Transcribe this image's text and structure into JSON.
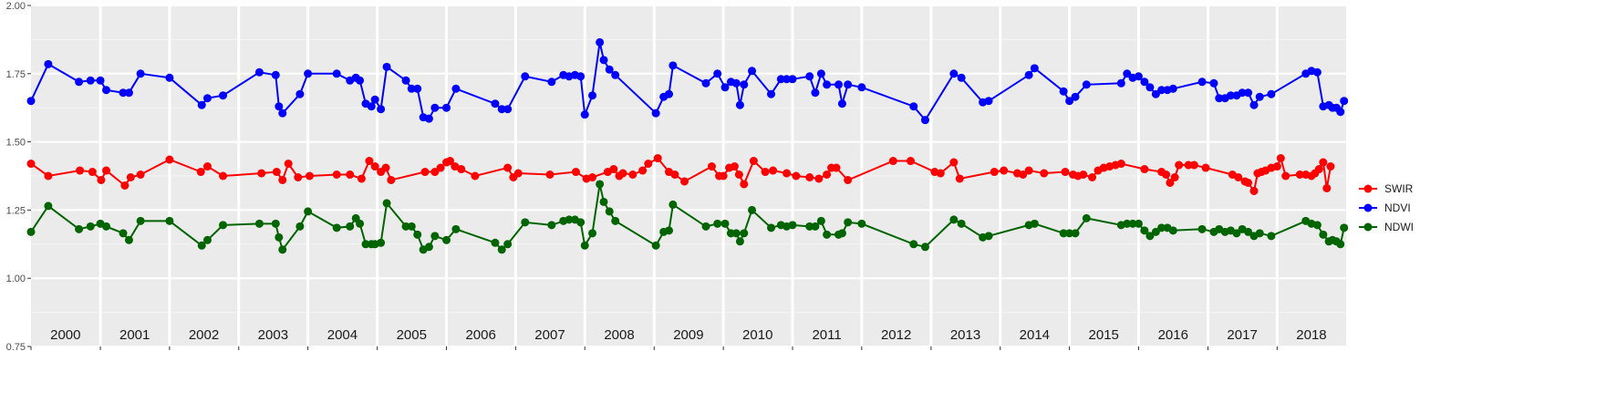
{
  "chart_data": {
    "type": "line",
    "ylim": [
      0.75,
      2.0
    ],
    "y_ticks": [
      "0.75",
      "1.00",
      "1.25",
      "1.50",
      "1.75",
      "2.00"
    ],
    "y_tick_values": [
      0.75,
      1.0,
      1.25,
      1.5,
      1.75,
      2.0
    ],
    "x_range": [
      "2000-01-01",
      "2018-12-31"
    ],
    "year_labels": [
      "2000",
      "2001",
      "2002",
      "2003",
      "2004",
      "2005",
      "2006",
      "2007",
      "2008",
      "2009",
      "2010",
      "2011",
      "2012",
      "2013",
      "2014",
      "2015",
      "2016",
      "2017",
      "2018"
    ],
    "grid": true,
    "legend_position": "right",
    "series": [
      {
        "name": "SWIR",
        "color": "#ff0000",
        "points": [
          [
            "2000-01-01",
            1.42
          ],
          [
            "2000-04-01",
            1.375
          ],
          [
            "2000-09-15",
            1.395
          ],
          [
            "2000-11-20",
            1.39
          ],
          [
            "2001-01-05",
            1.36
          ],
          [
            "2001-02-01",
            1.395
          ],
          [
            "2001-05-10",
            1.34
          ],
          [
            "2001-06-10",
            1.37
          ],
          [
            "2001-08-01",
            1.38
          ],
          [
            "2002-01-01",
            1.435
          ],
          [
            "2002-06-15",
            1.39
          ],
          [
            "2002-07-20",
            1.41
          ],
          [
            "2002-10-10",
            1.375
          ],
          [
            "2003-05-01",
            1.385
          ],
          [
            "2003-07-20",
            1.39
          ],
          [
            "2003-08-20",
            1.36
          ],
          [
            "2003-09-20",
            1.42
          ],
          [
            "2003-11-10",
            1.37
          ],
          [
            "2004-01-10",
            1.375
          ],
          [
            "2004-06-01",
            1.38
          ],
          [
            "2004-08-10",
            1.38
          ],
          [
            "2004-10-10",
            1.365
          ],
          [
            "2004-11-20",
            1.43
          ],
          [
            "2004-12-20",
            1.41
          ],
          [
            "2005-01-20",
            1.39
          ],
          [
            "2005-02-15",
            1.405
          ],
          [
            "2005-03-15",
            1.36
          ],
          [
            "2005-09-10",
            1.39
          ],
          [
            "2005-11-01",
            1.39
          ],
          [
            "2005-12-01",
            1.405
          ],
          [
            "2006-01-01",
            1.425
          ],
          [
            "2006-01-20",
            1.43
          ],
          [
            "2006-02-15",
            1.41
          ],
          [
            "2006-03-20",
            1.4
          ],
          [
            "2006-06-01",
            1.375
          ],
          [
            "2006-11-20",
            1.405
          ],
          [
            "2006-12-20",
            1.37
          ],
          [
            "2007-01-15",
            1.385
          ],
          [
            "2007-07-01",
            1.38
          ],
          [
            "2007-11-15",
            1.39
          ],
          [
            "2008-01-10",
            1.365
          ],
          [
            "2008-02-10",
            1.37
          ],
          [
            "2008-05-01",
            1.39
          ],
          [
            "2008-06-01",
            1.4
          ],
          [
            "2008-07-01",
            1.375
          ],
          [
            "2008-07-20",
            1.385
          ],
          [
            "2008-09-10",
            1.38
          ],
          [
            "2008-11-01",
            1.395
          ],
          [
            "2008-12-01",
            1.42
          ],
          [
            "2009-01-20",
            1.44
          ],
          [
            "2009-03-20",
            1.39
          ],
          [
            "2009-04-20",
            1.38
          ],
          [
            "2009-06-10",
            1.355
          ],
          [
            "2009-11-01",
            1.41
          ],
          [
            "2009-12-10",
            1.375
          ],
          [
            "2010-01-01",
            1.375
          ],
          [
            "2010-02-01",
            1.405
          ],
          [
            "2010-03-01",
            1.41
          ],
          [
            "2010-03-25",
            1.38
          ],
          [
            "2010-04-20",
            1.345
          ],
          [
            "2010-06-10",
            1.43
          ],
          [
            "2010-08-10",
            1.39
          ],
          [
            "2010-09-20",
            1.395
          ],
          [
            "2010-12-01",
            1.385
          ],
          [
            "2011-01-20",
            1.375
          ],
          [
            "2011-04-01",
            1.37
          ],
          [
            "2011-05-20",
            1.365
          ],
          [
            "2011-07-01",
            1.38
          ],
          [
            "2011-07-25",
            1.405
          ],
          [
            "2011-08-20",
            1.405
          ],
          [
            "2011-10-20",
            1.36
          ],
          [
            "2012-06-15",
            1.43
          ],
          [
            "2012-09-15",
            1.43
          ],
          [
            "2013-01-20",
            1.39
          ],
          [
            "2013-02-20",
            1.385
          ],
          [
            "2013-05-01",
            1.425
          ],
          [
            "2013-06-01",
            1.365
          ],
          [
            "2013-12-01",
            1.39
          ],
          [
            "2014-01-20",
            1.395
          ],
          [
            "2014-04-01",
            1.385
          ],
          [
            "2014-05-01",
            1.38
          ],
          [
            "2014-06-01",
            1.395
          ],
          [
            "2014-08-20",
            1.385
          ],
          [
            "2014-12-10",
            1.39
          ],
          [
            "2015-01-20",
            1.38
          ],
          [
            "2015-02-15",
            1.375
          ],
          [
            "2015-03-15",
            1.38
          ],
          [
            "2015-05-01",
            1.37
          ],
          [
            "2015-06-01",
            1.395
          ],
          [
            "2015-07-01",
            1.405
          ],
          [
            "2015-08-01",
            1.41
          ],
          [
            "2015-09-01",
            1.415
          ],
          [
            "2015-10-01",
            1.42
          ],
          [
            "2016-02-01",
            1.4
          ],
          [
            "2016-05-01",
            1.39
          ],
          [
            "2016-05-25",
            1.38
          ],
          [
            "2016-06-15",
            1.35
          ],
          [
            "2016-07-10",
            1.37
          ],
          [
            "2016-08-01",
            1.415
          ],
          [
            "2016-09-20",
            1.415
          ],
          [
            "2016-10-20",
            1.415
          ],
          [
            "2016-12-20",
            1.405
          ],
          [
            "2017-05-10",
            1.38
          ],
          [
            "2017-06-10",
            1.37
          ],
          [
            "2017-07-15",
            1.355
          ],
          [
            "2017-08-01",
            1.35
          ],
          [
            "2017-09-01",
            1.32
          ],
          [
            "2017-09-20",
            1.385
          ],
          [
            "2017-10-10",
            1.39
          ],
          [
            "2017-11-01",
            1.395
          ],
          [
            "2017-12-01",
            1.405
          ],
          [
            "2018-01-01",
            1.41
          ],
          [
            "2018-01-20",
            1.44
          ],
          [
            "2018-02-15",
            1.375
          ],
          [
            "2018-05-01",
            1.38
          ],
          [
            "2018-06-01",
            1.38
          ],
          [
            "2018-07-01",
            1.375
          ],
          [
            "2018-07-20",
            1.385
          ],
          [
            "2018-08-10",
            1.4
          ],
          [
            "2018-09-01",
            1.425
          ],
          [
            "2018-09-20",
            1.33
          ],
          [
            "2018-10-10",
            1.41
          ]
        ]
      }
    ]
  }
}
